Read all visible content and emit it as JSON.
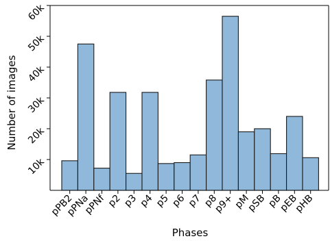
{
  "chart_data": {
    "type": "bar",
    "xlabel": "Phases",
    "ylabel": "Number of images",
    "ylim": [
      0,
      60000
    ],
    "yticks": [
      10000,
      20000,
      30000,
      40000,
      50000,
      60000
    ],
    "ytick_labels": [
      "10k",
      "20k",
      "30k",
      "40k",
      "50k",
      "60k"
    ],
    "categories": [
      "pPB2",
      "pPNa",
      "pPNf",
      "p2",
      "p3",
      "p4",
      "p5",
      "p6",
      "p7",
      "p8",
      "p9+",
      "pM",
      "pSB",
      "pB",
      "pEB",
      "pHB"
    ],
    "values": [
      9600,
      47500,
      7200,
      31800,
      5500,
      31800,
      8700,
      9000,
      11500,
      35800,
      56500,
      19000,
      20000,
      11900,
      24000,
      10600
    ],
    "bar_color": "#8fb8da",
    "edge_color": "#1a1a1a",
    "grid": false
  }
}
